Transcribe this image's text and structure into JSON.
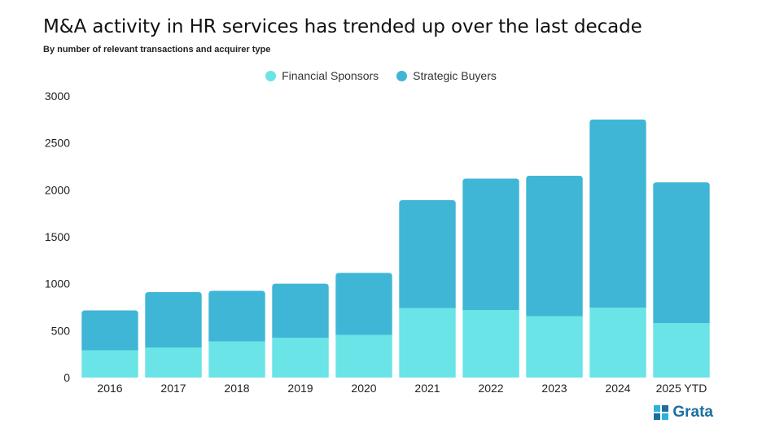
{
  "header": {
    "title": "M&A activity in HR services has trended up over the last decade",
    "subtitle": "By number of relevant transactions and acquirer type"
  },
  "brand": {
    "name": "Grata",
    "color": "#1a6fa0",
    "icon": "grata-logo-icon"
  },
  "chart_data": {
    "type": "bar",
    "stacked": true,
    "title": "M&A activity in HR services has trended up over the last decade",
    "subtitle": "By number of relevant transactions and acquirer type",
    "xlabel": "",
    "ylabel": "",
    "ylim": [
      0,
      3000
    ],
    "yticks": [
      0,
      500,
      1000,
      1500,
      2000,
      2500,
      3000
    ],
    "categories": [
      "2016",
      "2017",
      "2018",
      "2019",
      "2020",
      "2021",
      "2022",
      "2023",
      "2024",
      "2025 YTD"
    ],
    "series": [
      {
        "name": "Financial Sponsors",
        "color": "#6ae4e6",
        "values": [
          290,
          320,
          385,
          425,
          455,
          740,
          720,
          655,
          745,
          580
        ]
      },
      {
        "name": "Strategic Buyers",
        "color": "#40b6d6",
        "values": [
          425,
          590,
          540,
          575,
          660,
          1150,
          1400,
          1495,
          2005,
          1500
        ]
      }
    ],
    "legend_position": "top-center",
    "grid": false
  }
}
